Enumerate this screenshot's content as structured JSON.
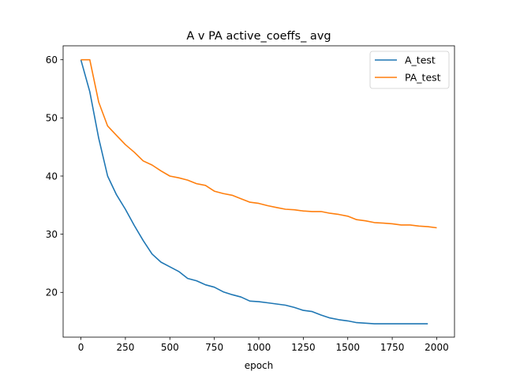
{
  "chart_data": {
    "type": "line",
    "title": "A v PA active_coeffs_ avg",
    "xlabel": "epoch",
    "ylabel": "",
    "xlim": [
      -100,
      2100
    ],
    "ylim": [
      12.3,
      62.4
    ],
    "xticks": [
      0,
      250,
      500,
      750,
      1000,
      1250,
      1500,
      1750,
      2000
    ],
    "yticks": [
      20,
      30,
      40,
      50,
      60
    ],
    "grid": false,
    "legend_position": "top-right",
    "series": [
      {
        "name": "A_test",
        "color": "#1f77b4",
        "x": [
          0,
          50,
          100,
          150,
          200,
          250,
          300,
          350,
          400,
          450,
          500,
          550,
          600,
          650,
          700,
          750,
          800,
          850,
          900,
          950,
          1000,
          1050,
          1100,
          1150,
          1200,
          1250,
          1300,
          1350,
          1400,
          1450,
          1500,
          1550,
          1600,
          1650,
          1700,
          1750,
          1800,
          1850,
          1900,
          1950
        ],
        "y": [
          60.0,
          54.5,
          46.5,
          40.0,
          36.8,
          34.3,
          31.5,
          28.9,
          26.6,
          25.2,
          24.4,
          23.6,
          22.4,
          22.0,
          21.3,
          20.9,
          20.1,
          19.6,
          19.2,
          18.5,
          18.4,
          18.2,
          18.0,
          17.8,
          17.4,
          16.9,
          16.7,
          16.1,
          15.6,
          15.3,
          15.1,
          14.8,
          14.7,
          14.6,
          14.6,
          14.6,
          14.6,
          14.6,
          14.6,
          14.6
        ]
      },
      {
        "name": "PA_test",
        "color": "#ff7f0e",
        "x": [
          0,
          50,
          100,
          150,
          200,
          250,
          300,
          350,
          400,
          450,
          500,
          550,
          600,
          650,
          700,
          750,
          800,
          850,
          900,
          950,
          1000,
          1050,
          1100,
          1150,
          1200,
          1250,
          1300,
          1350,
          1400,
          1450,
          1500,
          1550,
          1600,
          1650,
          1700,
          1750,
          1800,
          1850,
          1900,
          1950,
          2000
        ],
        "y": [
          60.0,
          60.0,
          52.7,
          48.6,
          47.0,
          45.4,
          44.1,
          42.6,
          41.9,
          40.9,
          40.0,
          39.7,
          39.3,
          38.7,
          38.4,
          37.4,
          37.0,
          36.7,
          36.1,
          35.5,
          35.3,
          34.9,
          34.6,
          34.3,
          34.2,
          34.0,
          33.9,
          33.9,
          33.6,
          33.4,
          33.1,
          32.5,
          32.3,
          32.0,
          31.9,
          31.8,
          31.6,
          31.6,
          31.4,
          31.3,
          31.1
        ]
      }
    ]
  }
}
